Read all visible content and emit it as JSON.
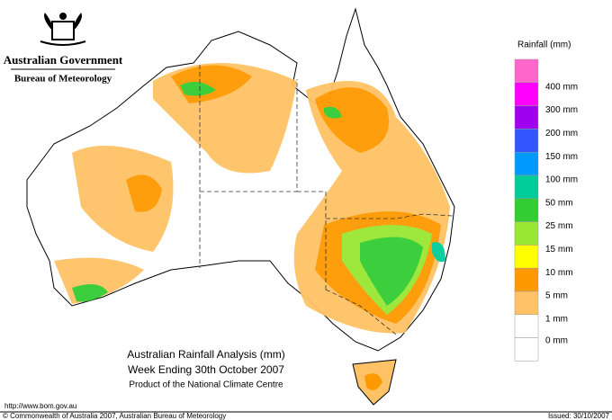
{
  "header": {
    "government": "Australian Government",
    "agency": "Bureau of Meteorology"
  },
  "legend": {
    "title": "Rainfall (mm)",
    "items": [
      {
        "color": "#ff66cc"
      },
      {
        "label": "400 mm",
        "color": "#ff00ff"
      },
      {
        "label": "300 mm",
        "color": "#a000f0"
      },
      {
        "label": "200 mm",
        "color": "#3355ff"
      },
      {
        "label": "150 mm",
        "color": "#0099ff"
      },
      {
        "label": "100 mm",
        "color": "#00cc99"
      },
      {
        "label": "50 mm",
        "color": "#33cc33"
      },
      {
        "label": "25 mm",
        "color": "#99e633"
      },
      {
        "label": "15 mm",
        "color": "#ffff00"
      },
      {
        "label": "10 mm",
        "color": "#ff9900"
      },
      {
        "label": "5 mm",
        "color": "#ffc266"
      },
      {
        "label": "1 mm",
        "color": "#ffffff"
      }
    ]
  },
  "legend_bottom": "0 mm",
  "title": {
    "lines": [
      "Australian Rainfall Analysis (mm)",
      "Week Ending 30th October 2007",
      "Product of the National Climate Centre"
    ]
  },
  "footer": {
    "url": "http://www.bom.gov.au",
    "copyright": "© Commonwealth of Australia 2007, Australian Bureau of Meteorology",
    "issued": "Issued: 30/10/2007"
  }
}
